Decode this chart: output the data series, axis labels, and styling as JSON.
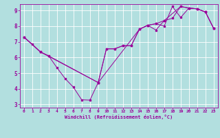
{
  "bg_color": "#b2dfdf",
  "line_color": "#990099",
  "marker_color": "#990099",
  "xlabel": "Windchill (Refroidissement éolien,°C)",
  "xlim": [
    -0.5,
    23.5
  ],
  "ylim": [
    2.8,
    9.4
  ],
  "xticks": [
    0,
    1,
    2,
    3,
    4,
    5,
    6,
    7,
    8,
    9,
    10,
    11,
    12,
    13,
    14,
    15,
    16,
    17,
    18,
    19,
    20,
    21,
    22,
    23
  ],
  "yticks": [
    3,
    4,
    5,
    6,
    7,
    8,
    9
  ],
  "grid_color": "#ffffff",
  "series1_x": [
    0,
    1,
    2,
    3,
    4,
    5,
    6,
    7,
    8,
    9,
    10,
    11,
    12,
    13,
    14,
    15,
    16,
    17,
    18,
    19,
    20,
    21,
    22,
    23
  ],
  "series1_y": [
    7.3,
    6.85,
    6.35,
    6.1,
    5.35,
    4.65,
    4.1,
    3.3,
    3.28,
    4.4,
    6.55,
    6.55,
    6.75,
    6.75,
    7.8,
    8.05,
    8.15,
    8.0,
    9.25,
    8.55,
    9.15,
    9.1,
    8.9,
    7.85
  ],
  "series2_x": [
    0,
    2,
    3,
    9,
    10,
    11,
    12,
    13,
    14,
    15,
    16,
    17,
    18,
    19,
    20,
    21,
    22,
    23
  ],
  "series2_y": [
    7.3,
    6.35,
    6.1,
    4.4,
    6.55,
    6.55,
    6.75,
    6.75,
    7.8,
    8.05,
    8.15,
    8.35,
    8.5,
    9.25,
    9.15,
    9.1,
    8.9,
    7.85
  ],
  "series3_x": [
    0,
    2,
    9,
    14,
    15,
    16,
    17,
    19,
    20,
    21,
    22,
    23
  ],
  "series3_y": [
    7.3,
    6.35,
    4.4,
    7.8,
    8.05,
    7.75,
    8.35,
    9.25,
    9.15,
    9.1,
    8.9,
    7.85
  ]
}
